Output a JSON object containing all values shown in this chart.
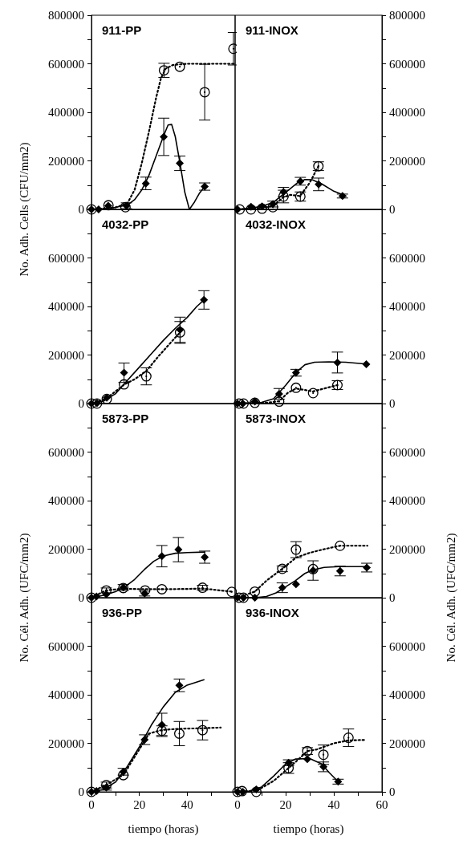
{
  "chart_data": [
    {
      "type": "scatter",
      "title": "911-PP",
      "ylabel": "No. Adh. Cells (CFU/mm2)",
      "xlim": [
        0,
        60
      ],
      "ylim": [
        0,
        800000
      ],
      "tick_labels": "y",
      "yticks": [
        0,
        {
          "value": 100000,
          "label": null
        },
        200000,
        {
          "value": 300000,
          "label": null
        },
        400000,
        {
          "value": 500000,
          "label": null
        },
        600000,
        {
          "value": 700000,
          "label": null
        },
        800000
      ],
      "series": [
        {
          "type": "line",
          "line_style": "solid",
          "marker": "none",
          "color": "#000000",
          "x": [
            0,
            5,
            10,
            15,
            18,
            21,
            24,
            27,
            30,
            32,
            33.5,
            35,
            37,
            39,
            40.9,
            43,
            45,
            47.3
          ],
          "values": [
            0,
            3000,
            8000,
            18000,
            40000,
            80000,
            140000,
            220000,
            300000,
            348000,
            350000,
            300000,
            190000,
            70000,
            0,
            30000,
            65000,
            94000
          ]
        },
        {
          "type": "line",
          "line_style": "dotted",
          "marker": "none",
          "color": "#000000",
          "x": [
            0,
            10,
            15,
            18,
            21,
            24,
            27,
            29,
            31,
            34,
            40,
            50,
            60
          ],
          "values": [
            0,
            8000,
            25000,
            80000,
            190000,
            320000,
            460000,
            540000,
            580000,
            595000,
            600000,
            600000,
            600000
          ]
        },
        {
          "type": "scatter",
          "marker": "diamond",
          "color": "#000000",
          "x": [
            0,
            3,
            7,
            14.6,
            22.7,
            30.2,
            36.9,
            47.3
          ],
          "values": [
            0,
            0,
            15000,
            15000,
            107000,
            299000,
            190000,
            94000
          ],
          "errors": [
            null,
            null,
            null,
            12000,
            26000,
            77000,
            30000,
            15000
          ]
        },
        {
          "type": "scatter",
          "marker": "circle",
          "color": "#000000",
          "x": [
            0,
            7.1,
            14.2,
            30.3,
            36.9,
            47.3,
            59.3
          ],
          "values": [
            0,
            17000,
            9000,
            573000,
            588000,
            483000,
            662000
          ],
          "errors": [
            null,
            null,
            null,
            29000,
            null,
            115000,
            67000
          ]
        }
      ]
    },
    {
      "type": "scatter",
      "title": "911-INOX",
      "xlim": [
        -1,
        60
      ],
      "ylim": [
        0,
        800000
      ],
      "tick_labels": "y",
      "yticks": [
        0,
        {
          "value": 100000,
          "label": null
        },
        200000,
        {
          "value": 300000,
          "label": null
        },
        400000,
        {
          "value": 500000,
          "label": null
        },
        600000,
        {
          "value": 700000,
          "label": null
        },
        800000
      ],
      "series": [
        {
          "type": "line",
          "line_style": "solid",
          "marker": "none",
          "color": "#000000",
          "x": [
            0,
            5,
            10,
            15,
            20,
            25,
            28,
            31,
            35,
            40,
            45
          ],
          "values": [
            0,
            5000,
            12000,
            30000,
            70000,
            110000,
            123000,
            122000,
            105000,
            75000,
            55000
          ]
        },
        {
          "type": "line",
          "line_style": "dotted",
          "marker": "none",
          "color": "#000000",
          "x": [
            0,
            10,
            15,
            19,
            22,
            26,
            30,
            33.6
          ],
          "values": [
            0,
            5000,
            15000,
            50000,
            60000,
            55000,
            110000,
            178000
          ]
        },
        {
          "type": "scatter",
          "marker": "diamond",
          "color": "#000000",
          "x": [
            0,
            5.6,
            10.2,
            14.7,
            19.1,
            26.1,
            33.7,
            43.6
          ],
          "values": [
            0,
            11000,
            12000,
            22000,
            72000,
            116000,
            103000,
            55000
          ],
          "errors": [
            null,
            null,
            null,
            12000,
            19000,
            16000,
            26000,
            8000
          ]
        },
        {
          "type": "scatter",
          "marker": "circle",
          "color": "#000000",
          "x": [
            0.9,
            5.6,
            10.2,
            14.7,
            19.1,
            26.1,
            33.6
          ],
          "values": [
            0,
            0,
            3000,
            9000,
            53000,
            53000,
            178000
          ],
          "errors": [
            null,
            null,
            null,
            null,
            26000,
            19000,
            18000
          ]
        }
      ]
    },
    {
      "type": "scatter",
      "title": "4032-PP",
      "xlim": [
        0,
        60
      ],
      "ylim": [
        0,
        800000
      ],
      "tick_labels": "y",
      "yticks": [
        0,
        {
          "value": 100000,
          "label": null
        },
        200000,
        {
          "value": 300000,
          "label": null
        },
        400000,
        {
          "value": 500000,
          "label": null
        },
        600000,
        {
          "value": 700000,
          "label": null
        },
        {
          "value": 800000,
          "label": null
        }
      ],
      "series": [
        {
          "type": "line",
          "line_style": "solid",
          "marker": "none",
          "color": "#000000",
          "x": [
            0,
            5,
            10,
            13.6,
            20,
            25,
            30,
            35,
            40,
            44,
            47
          ],
          "values": [
            0,
            10000,
            40000,
            80000,
            150000,
            205000,
            260000,
            310000,
            355000,
            400000,
            427000
          ]
        },
        {
          "type": "line",
          "line_style": "dotted",
          "marker": "none",
          "color": "#000000",
          "x": [
            0,
            6,
            13.6,
            18,
            23,
            28,
            33,
            37
          ],
          "values": [
            0,
            19000,
            78000,
            100000,
            135000,
            195000,
            250000,
            293000
          ]
        },
        {
          "type": "scatter",
          "marker": "diamond",
          "color": "#000000",
          "x": [
            0,
            2.3,
            6.4,
            13.6,
            37,
            47
          ],
          "values": [
            0,
            2000,
            24000,
            127000,
            304000,
            427000
          ],
          "errors": [
            null,
            null,
            null,
            40000,
            52000,
            38000
          ]
        },
        {
          "type": "scatter",
          "marker": "circle",
          "color": "#000000",
          "x": [
            0,
            2.3,
            6.4,
            13.6,
            22.9,
            37
          ],
          "values": [
            0,
            0,
            19000,
            79000,
            112000,
            293000
          ],
          "errors": [
            null,
            null,
            null,
            null,
            35000,
            45000
          ]
        }
      ]
    },
    {
      "type": "scatter",
      "title": "4032-INOX",
      "xlim": [
        -1,
        60
      ],
      "ylim": [
        0,
        800000
      ],
      "tick_labels": "y",
      "yticks": [
        0,
        {
          "value": 100000,
          "label": null
        },
        200000,
        {
          "value": 300000,
          "label": null
        },
        400000,
        {
          "value": 500000,
          "label": null
        },
        600000,
        {
          "value": 700000,
          "label": null
        },
        {
          "value": 800000,
          "label": null
        }
      ],
      "series": [
        {
          "type": "line",
          "line_style": "solid",
          "marker": "none",
          "color": "#000000",
          "x": [
            0,
            10,
            15,
            20,
            24.3,
            28,
            32,
            38,
            45,
            53.5
          ],
          "values": [
            0,
            5000,
            20000,
            75000,
            128000,
            160000,
            170000,
            172000,
            170000,
            163000
          ]
        },
        {
          "type": "line",
          "line_style": "dotted",
          "marker": "none",
          "color": "#000000",
          "x": [
            0,
            12,
            17.3,
            21,
            24.3,
            31.4,
            36,
            41.5
          ],
          "values": [
            0,
            3000,
            10000,
            45000,
            62000,
            50000,
            62000,
            76000
          ]
        },
        {
          "type": "scatter",
          "marker": "diamond",
          "color": "#000000",
          "x": [
            0,
            2.2,
            7.2,
            17.3,
            24.3,
            41.5,
            53.5
          ],
          "values": [
            0,
            0,
            8000,
            40000,
            127000,
            169000,
            162000
          ],
          "errors": [
            null,
            null,
            null,
            22000,
            14000,
            43000,
            null
          ]
        },
        {
          "type": "scatter",
          "marker": "circle",
          "color": "#000000",
          "x": [
            0.6,
            2.5,
            7.2,
            17.3,
            24.3,
            31.4,
            41.5
          ],
          "values": [
            0,
            0,
            3000,
            8000,
            65000,
            43000,
            76000
          ],
          "errors": [
            null,
            null,
            null,
            null,
            null,
            null,
            18000
          ]
        }
      ]
    },
    {
      "type": "scatter",
      "title": "5873-PP",
      "ylabel": "No. Cél. Adh. (UFC/mm2)",
      "xlim": [
        0,
        60
      ],
      "ylim": [
        0,
        800000
      ],
      "tick_labels": "y",
      "yticks": [
        0,
        {
          "value": 100000,
          "label": null
        },
        200000,
        {
          "value": 300000,
          "label": null
        },
        400000,
        {
          "value": 500000,
          "label": null
        },
        600000,
        {
          "value": 700000,
          "label": null
        },
        {
          "value": 800000,
          "label": null
        }
      ],
      "series": [
        {
          "type": "line",
          "line_style": "solid",
          "marker": "none",
          "color": "#000000",
          "x": [
            0,
            5,
            10,
            14,
            18,
            22,
            26,
            30,
            35,
            40,
            47.3
          ],
          "values": [
            0,
            10000,
            25000,
            45000,
            75000,
            115000,
            150000,
            172000,
            183000,
            186000,
            188000
          ]
        },
        {
          "type": "line",
          "line_style": "dotted",
          "marker": "none",
          "color": "#000000",
          "x": [
            0,
            6,
            13,
            22,
            30,
            40,
            46.4,
            58.6
          ],
          "values": [
            0,
            30000,
            37000,
            35000,
            35000,
            36000,
            38000,
            25000
          ]
        },
        {
          "type": "scatter",
          "marker": "diamond",
          "color": "#000000",
          "x": [
            0,
            2.1,
            6.2,
            13.3,
            22.2,
            29.4,
            36.3,
            47.3
          ],
          "values": [
            0,
            5000,
            14000,
            42000,
            17000,
            171000,
            198000,
            167000
          ],
          "errors": [
            null,
            null,
            null,
            12000,
            10000,
            44000,
            50000,
            25000
          ]
        },
        {
          "type": "scatter",
          "marker": "circle",
          "color": "#000000",
          "x": [
            0,
            6.2,
            13.3,
            22.4,
            29.4,
            46.4,
            58.6
          ],
          "values": [
            0,
            30000,
            40000,
            30000,
            35000,
            41000,
            24000
          ],
          "errors": [
            null,
            10000,
            null,
            null,
            null,
            10000,
            null
          ]
        }
      ]
    },
    {
      "type": "scatter",
      "title": "5873-INOX",
      "ylabel": "No. Cél. Adh. (UFC/mm2)",
      "xlim": [
        -1,
        60
      ],
      "ylim": [
        0,
        800000
      ],
      "tick_labels": "y",
      "yticks": [
        0,
        {
          "value": 100000,
          "label": null
        },
        200000,
        {
          "value": 300000,
          "label": null
        },
        400000,
        {
          "value": 500000,
          "label": null
        },
        600000,
        {
          "value": 700000,
          "label": null
        },
        {
          "value": 800000,
          "label": null
        }
      ],
      "series": [
        {
          "type": "line",
          "line_style": "solid",
          "marker": "none",
          "color": "#000000",
          "x": [
            0,
            8,
            12,
            16,
            20,
            24,
            28,
            31.4,
            36,
            42,
            54
          ],
          "values": [
            0,
            1000,
            5000,
            20000,
            45000,
            70000,
            100000,
            115000,
            125000,
            128000,
            128000
          ]
        },
        {
          "type": "line",
          "line_style": "dotted",
          "marker": "none",
          "color": "#000000",
          "x": [
            0,
            7.2,
            12,
            18.6,
            24.3,
            30,
            36,
            42.6,
            54
          ],
          "values": [
            0,
            25000,
            70000,
            119000,
            165000,
            185000,
            200000,
            214000,
            214000
          ]
        },
        {
          "type": "scatter",
          "marker": "diamond",
          "color": "#000000",
          "x": [
            0,
            2.5,
            7.2,
            18.6,
            24.3,
            31.4,
            42.6,
            53.7
          ],
          "values": [
            0,
            0,
            0,
            41000,
            55000,
            112000,
            110000,
            124000
          ],
          "errors": [
            null,
            null,
            null,
            20000,
            null,
            40000,
            20000,
            18000
          ]
        },
        {
          "type": "scatter",
          "marker": "circle",
          "color": "#000000",
          "x": [
            0.6,
            2.5,
            7.2,
            18.6,
            24.3,
            31.4,
            42.6
          ],
          "values": [
            0,
            0,
            25000,
            119000,
            198000,
            118000,
            214000
          ],
          "errors": [
            null,
            null,
            null,
            12000,
            33000,
            null,
            null
          ]
        }
      ]
    },
    {
      "type": "scatter",
      "title": "936-PP",
      "xlabel": "tiempo (horas)",
      "xlim": [
        0,
        60
      ],
      "ylim": [
        0,
        800000
      ],
      "xticks": [
        0,
        {
          "value": 10,
          "label": null
        },
        20,
        {
          "value": 30,
          "label": null
        },
        40,
        {
          "value": 50,
          "label": null
        }
      ],
      "yticks": [
        0,
        {
          "value": 100000,
          "label": null
        },
        200000,
        {
          "value": 300000,
          "label": null
        },
        400000,
        {
          "value": 500000,
          "label": null
        },
        600000,
        {
          "value": 700000,
          "label": null
        },
        {
          "value": 800000,
          "label": null
        }
      ],
      "series": [
        {
          "type": "line",
          "line_style": "solid",
          "marker": "none",
          "color": "#000000",
          "x": [
            0,
            5,
            10,
            15,
            20,
            25,
            30,
            35,
            40,
            47
          ],
          "values": [
            0,
            10000,
            40000,
            105000,
            185000,
            275000,
            350000,
            410000,
            440000,
            462000
          ]
        },
        {
          "type": "line",
          "line_style": "dotted",
          "marker": "none",
          "color": "#000000",
          "x": [
            0,
            6,
            13.3,
            20,
            24,
            29.4,
            36.7,
            46.4,
            54
          ],
          "values": [
            0,
            28000,
            70000,
            175000,
            240000,
            255000,
            260000,
            262000,
            265000
          ]
        },
        {
          "type": "scatter",
          "marker": "diamond",
          "color": "#000000",
          "x": [
            0,
            2.1,
            6.2,
            13.3,
            22.2,
            29.4,
            36.7
          ],
          "values": [
            0,
            3000,
            17000,
            83000,
            215000,
            276000,
            439000
          ],
          "errors": [
            null,
            null,
            10000,
            14000,
            20000,
            48000,
            26000
          ]
        },
        {
          "type": "scatter",
          "marker": "circle",
          "color": "#000000",
          "x": [
            0,
            6.2,
            13.3,
            29.4,
            36.7,
            46.4
          ],
          "values": [
            0,
            28000,
            69000,
            252000,
            240000,
            254000
          ],
          "errors": [
            null,
            12000,
            null,
            20000,
            50000,
            40000
          ]
        }
      ]
    },
    {
      "type": "scatter",
      "title": "936-INOX",
      "xlabel": "tiempo (horas)",
      "xlim": [
        -1,
        60
      ],
      "ylim": [
        0,
        800000
      ],
      "xticks": [
        0,
        {
          "value": 10,
          "label": null
        },
        20,
        {
          "value": 30,
          "label": null
        },
        40,
        {
          "value": 50,
          "label": null
        },
        60
      ],
      "yticks": [
        0,
        {
          "value": 100000,
          "label": null
        },
        200000,
        {
          "value": 300000,
          "label": null
        },
        400000,
        {
          "value": 500000,
          "label": null
        },
        600000,
        {
          "value": 700000,
          "label": null
        },
        {
          "value": 800000,
          "label": null
        }
      ],
      "series": [
        {
          "type": "line",
          "line_style": "solid",
          "marker": "none",
          "color": "#000000",
          "x": [
            0,
            5,
            10,
            15,
            20,
            24,
            30,
            35,
            38,
            41.8
          ],
          "values": [
            0,
            3000,
            20000,
            65000,
            115000,
            135000,
            137000,
            115000,
            80000,
            42000
          ]
        },
        {
          "type": "line",
          "line_style": "dotted",
          "marker": "none",
          "color": "#000000",
          "x": [
            0,
            8,
            15,
            21.2,
            26,
            29,
            33,
            40,
            46,
            53.3
          ],
          "values": [
            0,
            5000,
            45000,
            98000,
            140000,
            168000,
            175000,
            200000,
            212000,
            214000
          ]
        },
        {
          "type": "scatter",
          "marker": "diamond",
          "color": "#000000",
          "x": [
            0,
            2.2,
            7.8,
            21.2,
            29,
            35.7,
            41.8
          ],
          "values": [
            0,
            0,
            10000,
            120000,
            135000,
            103000,
            42000
          ],
          "errors": [
            null,
            null,
            null,
            12000,
            null,
            20000,
            10000
          ]
        },
        {
          "type": "scatter",
          "marker": "circle",
          "color": "#000000",
          "x": [
            0,
            1.9,
            7.8,
            21.2,
            29,
            35.7,
            46.1
          ],
          "values": [
            0,
            3000,
            0,
            98000,
            168000,
            153000,
            223000
          ],
          "errors": [
            null,
            null,
            null,
            22000,
            14000,
            40000,
            36000
          ]
        }
      ]
    }
  ]
}
